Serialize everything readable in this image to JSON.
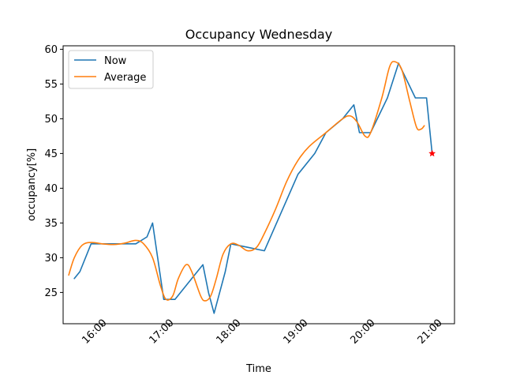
{
  "chart_data": {
    "type": "line",
    "title": "Occupancy Wednesday",
    "xlabel": "Time",
    "ylabel": "occupancy[%]",
    "x_ticks": [
      "16:00",
      "17:00",
      "18:00",
      "19:00",
      "20:00",
      "21:00"
    ],
    "y_ticks": [
      25,
      30,
      35,
      40,
      45,
      50,
      55,
      60
    ],
    "xlim": [
      "15:25",
      "21:15"
    ],
    "ylim": [
      20.5,
      60.5
    ],
    "grid": false,
    "legend_position": "top-left",
    "series": [
      {
        "name": "Now",
        "color": "#1f77b4",
        "points": [
          [
            "15:35",
            27
          ],
          [
            "15:40",
            28
          ],
          [
            "15:50",
            32
          ],
          [
            "16:00",
            32
          ],
          [
            "16:15",
            32
          ],
          [
            "16:30",
            32
          ],
          [
            "16:40",
            33
          ],
          [
            "16:45",
            35
          ],
          [
            "16:55",
            24
          ],
          [
            "17:05",
            24
          ],
          [
            "17:15",
            26
          ],
          [
            "17:25",
            28
          ],
          [
            "17:30",
            29
          ],
          [
            "17:35",
            25
          ],
          [
            "17:40",
            22
          ],
          [
            "17:45",
            25
          ],
          [
            "17:50",
            28
          ],
          [
            "17:55",
            32
          ],
          [
            "18:10",
            31.5
          ],
          [
            "18:25",
            31
          ],
          [
            "18:40",
            36.5
          ],
          [
            "18:55",
            42
          ],
          [
            "19:10",
            45
          ],
          [
            "19:20",
            48
          ],
          [
            "19:35",
            50
          ],
          [
            "19:45",
            52
          ],
          [
            "19:50",
            48
          ],
          [
            "20:00",
            48
          ],
          [
            "20:15",
            53
          ],
          [
            "20:25",
            58
          ],
          [
            "20:40",
            53
          ],
          [
            "20:50",
            53
          ],
          [
            "20:55",
            45
          ]
        ]
      },
      {
        "name": "Average",
        "color": "#ff7f0e",
        "points": [
          [
            "15:30",
            27.5
          ],
          [
            "15:35",
            30
          ],
          [
            "15:42",
            31.8
          ],
          [
            "15:50",
            32.2
          ],
          [
            "16:00",
            32
          ],
          [
            "16:10",
            31.9
          ],
          [
            "16:20",
            32.1
          ],
          [
            "16:30",
            32.5
          ],
          [
            "16:37",
            32
          ],
          [
            "16:45",
            30
          ],
          [
            "16:52",
            26
          ],
          [
            "16:57",
            24
          ],
          [
            "17:03",
            24.5
          ],
          [
            "17:08",
            27
          ],
          [
            "17:15",
            29
          ],
          [
            "17:20",
            28
          ],
          [
            "17:28",
            24.5
          ],
          [
            "17:32",
            23.8
          ],
          [
            "17:37",
            24.5
          ],
          [
            "17:42",
            27
          ],
          [
            "17:48",
            30.5
          ],
          [
            "17:55",
            32
          ],
          [
            "18:02",
            31.8
          ],
          [
            "18:10",
            31
          ],
          [
            "18:18",
            31.5
          ],
          [
            "18:25",
            33.5
          ],
          [
            "18:35",
            37
          ],
          [
            "18:45",
            41
          ],
          [
            "18:55",
            44
          ],
          [
            "19:05",
            46
          ],
          [
            "19:20",
            48
          ],
          [
            "19:35",
            50
          ],
          [
            "19:42",
            50.4
          ],
          [
            "19:48",
            49.5
          ],
          [
            "19:55",
            47.5
          ],
          [
            "20:00",
            48
          ],
          [
            "20:10",
            53
          ],
          [
            "20:17",
            57.5
          ],
          [
            "20:22",
            58.2
          ],
          [
            "20:28",
            57
          ],
          [
            "20:35",
            52.5
          ],
          [
            "20:41",
            48.8
          ],
          [
            "20:45",
            48.5
          ],
          [
            "20:48",
            49
          ]
        ]
      }
    ],
    "marker": {
      "x": "20:55",
      "y": 45,
      "symbol": "star",
      "color": "#ff0000"
    }
  }
}
